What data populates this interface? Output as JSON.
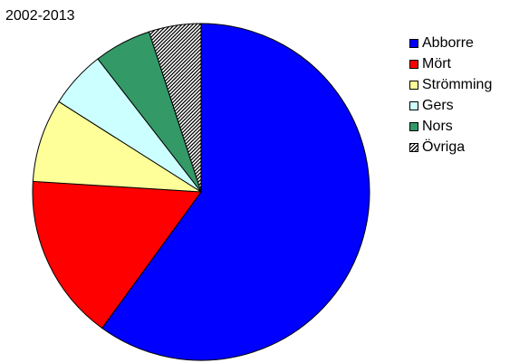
{
  "chart_data": {
    "type": "pie",
    "title": "2002-2013",
    "legend_position": "right",
    "start_angle_deg": 0,
    "direction": "clockwise",
    "slices": [
      {
        "name": "Abborre",
        "value": 60.0,
        "color": "#0000ff"
      },
      {
        "name": "Mört",
        "value": 16.0,
        "color": "#ff0000"
      },
      {
        "name": "Strömming",
        "value": 8.0,
        "color": "#ffff99"
      },
      {
        "name": "Gers",
        "value": 5.5,
        "color": "#ccffff"
      },
      {
        "name": "Nors",
        "value": 5.5,
        "color": "#339966"
      },
      {
        "name": "Övriga",
        "value": 5.0,
        "color": "hatch"
      }
    ]
  }
}
